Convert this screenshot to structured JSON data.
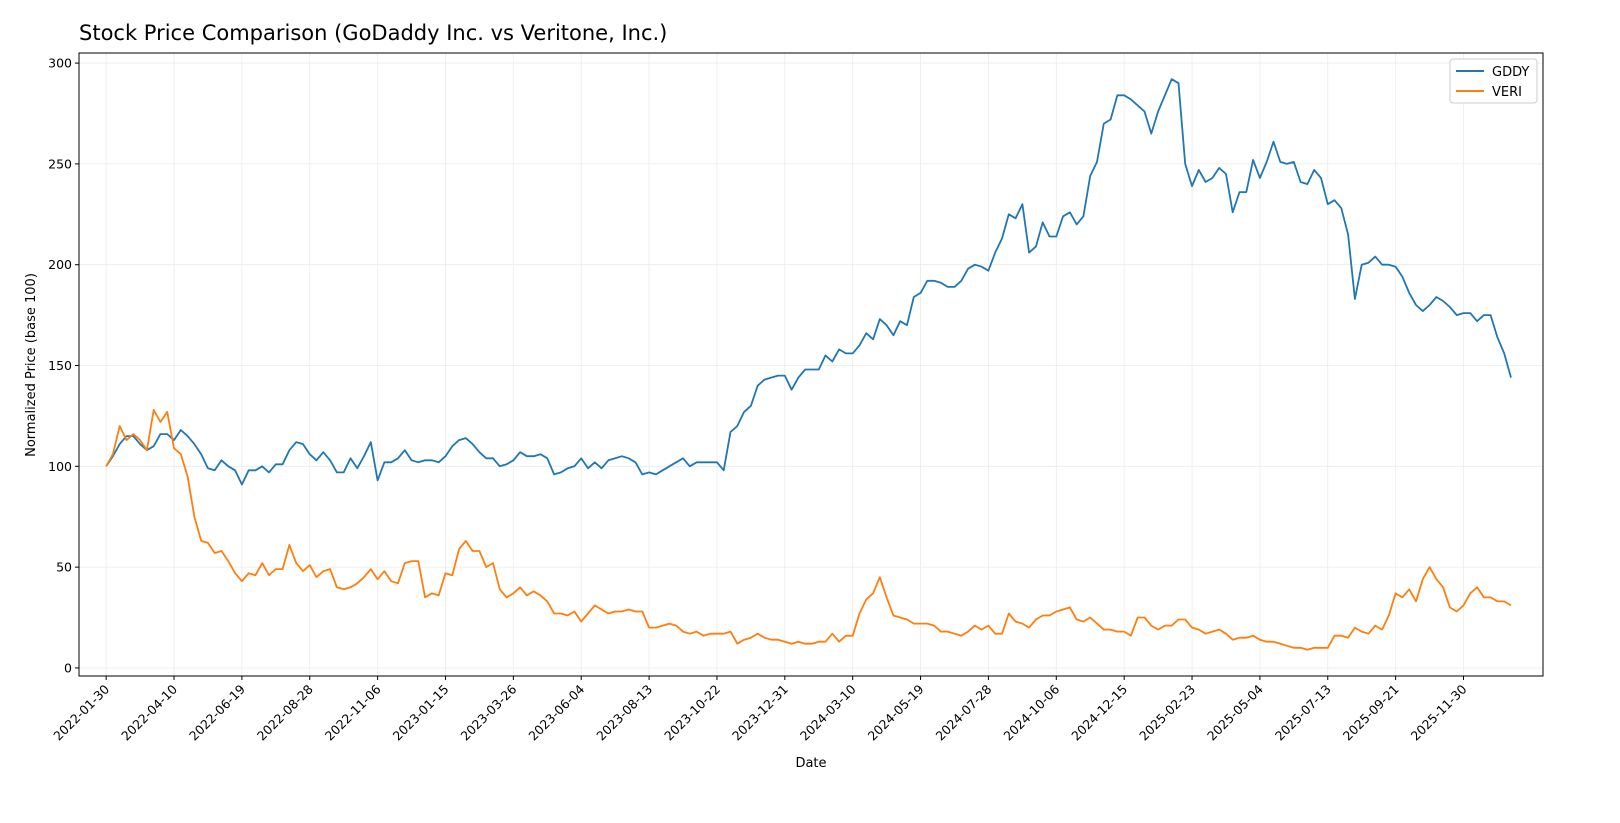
{
  "chart_data": {
    "type": "line",
    "title": "Stock Price Comparison (GoDaddy Inc. vs Veritone, Inc.)",
    "xlabel": "Date",
    "ylabel": "Normalized Price (base 100)",
    "ylim": [
      -4,
      305
    ],
    "yticks": [
      0,
      50,
      100,
      150,
      200,
      250,
      300
    ],
    "xlim_start": "2022-01-02",
    "xlim_end": "2026-02-20",
    "xticks": [
      "2022-01-30",
      "2022-04-10",
      "2022-06-19",
      "2022-08-28",
      "2022-11-06",
      "2023-01-15",
      "2023-03-26",
      "2023-06-04",
      "2023-08-13",
      "2023-10-22",
      "2023-12-31",
      "2024-03-10",
      "2024-05-19",
      "2024-07-28",
      "2024-10-06",
      "2024-12-15",
      "2025-02-23",
      "2025-05-04",
      "2025-07-13",
      "2025-09-21",
      "2025-11-30"
    ],
    "grid": true,
    "legend_position": "top-right",
    "x_start": "2022-01-30",
    "x_step_days": 7,
    "series": [
      {
        "name": "GDDY",
        "color": "#1f77b4",
        "values": [
          100,
          105,
          111,
          115,
          115,
          111,
          108,
          110,
          116,
          116,
          113,
          118,
          115,
          111,
          106,
          99,
          98,
          103,
          100,
          98,
          91,
          98,
          98,
          100,
          97,
          101,
          101,
          108,
          112,
          111,
          106,
          103,
          107,
          103,
          97,
          97,
          104,
          99,
          105,
          112,
          93,
          102,
          102,
          104,
          108,
          103,
          102,
          103,
          103,
          102,
          105,
          110,
          113,
          114,
          111,
          107,
          104,
          104,
          100,
          101,
          103,
          107,
          105,
          105,
          106,
          104,
          96,
          97,
          99,
          100,
          104,
          99,
          102,
          99,
          103,
          104,
          105,
          104,
          102,
          96,
          97,
          96,
          98,
          100,
          102,
          104,
          100,
          102,
          102,
          102,
          102,
          98,
          117,
          120,
          127,
          130,
          140,
          143,
          144,
          145,
          145,
          138,
          144,
          148,
          148,
          148,
          155,
          152,
          158,
          156,
          156,
          160,
          166,
          163,
          173,
          170,
          165,
          172,
          170,
          184,
          186,
          192,
          192,
          191,
          189,
          189,
          192,
          198,
          200,
          199,
          197,
          206,
          213,
          225,
          223,
          230,
          206,
          209,
          221,
          214,
          214,
          224,
          226,
          220,
          224,
          244,
          251,
          270,
          272,
          284,
          284,
          282,
          279,
          276,
          265,
          276,
          284,
          292,
          290,
          250,
          239,
          247,
          241,
          243,
          248,
          245,
          226,
          236,
          236,
          252,
          243,
          251,
          261,
          251,
          250,
          251,
          241,
          240,
          247,
          243,
          230,
          232,
          228,
          215,
          183,
          200,
          201,
          204,
          200,
          200,
          199,
          194,
          186,
          180,
          177,
          180,
          184,
          182,
          179,
          175,
          176,
          176,
          172,
          175,
          175,
          164,
          156,
          144
        ]
      },
      {
        "name": "VERI",
        "color": "#ff7f0e",
        "values": [
          100,
          106,
          120,
          113,
          116,
          113,
          108,
          128,
          122,
          127,
          109,
          106,
          95,
          75,
          63,
          62,
          57,
          58,
          53,
          47,
          43,
          47,
          46,
          52,
          46,
          49,
          49,
          61,
          52,
          48,
          51,
          45,
          48,
          49,
          40,
          39,
          40,
          42,
          45,
          49,
          44,
          48,
          43,
          42,
          52,
          53,
          53,
          35,
          37,
          36,
          47,
          46,
          59,
          63,
          58,
          58,
          50,
          52,
          39,
          35,
          37,
          40,
          36,
          38,
          36,
          33,
          27,
          27,
          26,
          28,
          23,
          27,
          31,
          29,
          27,
          28,
          28,
          29,
          28,
          28,
          20,
          20,
          21,
          22,
          21,
          18,
          17,
          18,
          16,
          17,
          17,
          17,
          18,
          12,
          14,
          15,
          17,
          15,
          14,
          14,
          13,
          12,
          13,
          12,
          12,
          13,
          13,
          17,
          13,
          16,
          16,
          27,
          34,
          37,
          45,
          35,
          26,
          25,
          24,
          22,
          22,
          22,
          21,
          18,
          18,
          17,
          16,
          18,
          21,
          19,
          21,
          17,
          17,
          27,
          23,
          22,
          20,
          24,
          26,
          26,
          28,
          29,
          30,
          24,
          23,
          25,
          22,
          19,
          19,
          18,
          18,
          16,
          25,
          25,
          21,
          19,
          21,
          21,
          24,
          24,
          20,
          19,
          17,
          18,
          19,
          17,
          14,
          15,
          15,
          16,
          14,
          13,
          13,
          12,
          11,
          10,
          10,
          9,
          10,
          10,
          10,
          16,
          16,
          15,
          20,
          18,
          17,
          21,
          19,
          26,
          37,
          35,
          39,
          33,
          44,
          50,
          44,
          40,
          30,
          28,
          31,
          37,
          40,
          35,
          35,
          33,
          33,
          31
        ]
      }
    ]
  }
}
